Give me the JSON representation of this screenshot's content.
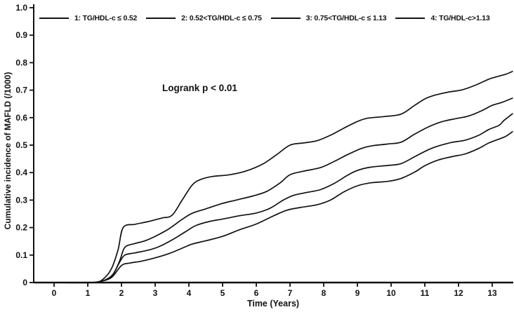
{
  "figure": {
    "annotation": "Logrank p < 0.01"
  },
  "colors": {
    "ink": "#111111",
    "background": "#ffffff"
  },
  "chart_data": {
    "type": "line",
    "title": "",
    "xlabel": "Time (Years)",
    "ylabel": "Cumulative incidence of MAFLD (/1000)",
    "annotation": "Logrank p < 0.01",
    "xlim": [
      -0.6,
      13.65
    ],
    "ylim": [
      0,
      1.0
    ],
    "xticks": [
      "0",
      "1",
      "2",
      "3",
      "4",
      "5",
      "6",
      "7",
      "8",
      "9",
      "10",
      "11",
      "12",
      "13"
    ],
    "yticks": [
      "0",
      "0.1",
      "0.2",
      "0.3",
      "0.4",
      "0.5",
      "0.6",
      "0.7",
      "0.8",
      "0.9",
      "1.0"
    ],
    "grid": false,
    "legend_position": "top",
    "series": [
      {
        "name": "1: TG/HDL-c ≤ 0.52",
        "points": [
          [
            0.1,
            0
          ],
          [
            1.0,
            0
          ],
          [
            1.35,
            0.004
          ],
          [
            1.7,
            0.018
          ],
          [
            2.0,
            0.062
          ],
          [
            2.25,
            0.071
          ],
          [
            2.6,
            0.078
          ],
          [
            3.0,
            0.09
          ],
          [
            3.4,
            0.105
          ],
          [
            3.8,
            0.125
          ],
          [
            4.1,
            0.14
          ],
          [
            4.5,
            0.152
          ],
          [
            5.0,
            0.168
          ],
          [
            5.5,
            0.192
          ],
          [
            6.0,
            0.213
          ],
          [
            6.5,
            0.242
          ],
          [
            6.9,
            0.263
          ],
          [
            7.3,
            0.273
          ],
          [
            7.8,
            0.283
          ],
          [
            8.2,
            0.3
          ],
          [
            8.6,
            0.33
          ],
          [
            9.0,
            0.352
          ],
          [
            9.4,
            0.363
          ],
          [
            9.9,
            0.368
          ],
          [
            10.3,
            0.379
          ],
          [
            10.7,
            0.402
          ],
          [
            11.0,
            0.425
          ],
          [
            11.4,
            0.446
          ],
          [
            11.8,
            0.458
          ],
          [
            12.2,
            0.468
          ],
          [
            12.6,
            0.488
          ],
          [
            12.9,
            0.508
          ],
          [
            13.2,
            0.522
          ],
          [
            13.4,
            0.532
          ],
          [
            13.6,
            0.549
          ]
        ]
      },
      {
        "name": "2: 0.52<TG/HDL-c ≤ 0.75",
        "points": [
          [
            0.1,
            0
          ],
          [
            1.05,
            0
          ],
          [
            1.4,
            0.005
          ],
          [
            1.7,
            0.022
          ],
          [
            1.95,
            0.075
          ],
          [
            2.1,
            0.1
          ],
          [
            2.4,
            0.108
          ],
          [
            2.8,
            0.118
          ],
          [
            3.1,
            0.13
          ],
          [
            3.5,
            0.155
          ],
          [
            3.9,
            0.185
          ],
          [
            4.2,
            0.207
          ],
          [
            4.6,
            0.222
          ],
          [
            5.0,
            0.231
          ],
          [
            5.5,
            0.243
          ],
          [
            6.0,
            0.253
          ],
          [
            6.4,
            0.27
          ],
          [
            6.8,
            0.3
          ],
          [
            7.1,
            0.317
          ],
          [
            7.5,
            0.328
          ],
          [
            7.9,
            0.338
          ],
          [
            8.3,
            0.36
          ],
          [
            8.7,
            0.39
          ],
          [
            9.0,
            0.408
          ],
          [
            9.4,
            0.42
          ],
          [
            9.9,
            0.426
          ],
          [
            10.3,
            0.433
          ],
          [
            10.7,
            0.458
          ],
          [
            11.1,
            0.483
          ],
          [
            11.4,
            0.497
          ],
          [
            11.8,
            0.51
          ],
          [
            12.2,
            0.518
          ],
          [
            12.6,
            0.536
          ],
          [
            12.9,
            0.557
          ],
          [
            13.2,
            0.572
          ],
          [
            13.35,
            0.59
          ],
          [
            13.6,
            0.614
          ]
        ]
      },
      {
        "name": "3: 0.75<TG/HDL-c ≤ 1.13",
        "points": [
          [
            0.1,
            0
          ],
          [
            1.1,
            0
          ],
          [
            1.45,
            0.006
          ],
          [
            1.75,
            0.03
          ],
          [
            1.95,
            0.08
          ],
          [
            2.1,
            0.128
          ],
          [
            2.4,
            0.142
          ],
          [
            2.7,
            0.152
          ],
          [
            3.0,
            0.168
          ],
          [
            3.4,
            0.195
          ],
          [
            3.8,
            0.23
          ],
          [
            4.1,
            0.252
          ],
          [
            4.5,
            0.268
          ],
          [
            5.0,
            0.288
          ],
          [
            5.4,
            0.3
          ],
          [
            5.9,
            0.315
          ],
          [
            6.3,
            0.331
          ],
          [
            6.7,
            0.362
          ],
          [
            7.0,
            0.392
          ],
          [
            7.4,
            0.405
          ],
          [
            7.9,
            0.418
          ],
          [
            8.3,
            0.44
          ],
          [
            8.7,
            0.465
          ],
          [
            9.1,
            0.487
          ],
          [
            9.4,
            0.497
          ],
          [
            9.9,
            0.504
          ],
          [
            10.3,
            0.511
          ],
          [
            10.7,
            0.54
          ],
          [
            11.1,
            0.566
          ],
          [
            11.5,
            0.585
          ],
          [
            11.9,
            0.596
          ],
          [
            12.3,
            0.606
          ],
          [
            12.7,
            0.626
          ],
          [
            13.0,
            0.645
          ],
          [
            13.3,
            0.656
          ],
          [
            13.6,
            0.671
          ]
        ]
      },
      {
        "name": "4: TG/HDL-c>1.13",
        "points": [
          [
            0.1,
            0
          ],
          [
            1.15,
            0
          ],
          [
            1.45,
            0.012
          ],
          [
            1.7,
            0.05
          ],
          [
            1.9,
            0.12
          ],
          [
            2.05,
            0.2
          ],
          [
            2.4,
            0.212
          ],
          [
            2.8,
            0.222
          ],
          [
            3.2,
            0.235
          ],
          [
            3.5,
            0.245
          ],
          [
            3.8,
            0.3
          ],
          [
            4.1,
            0.355
          ],
          [
            4.35,
            0.375
          ],
          [
            4.7,
            0.386
          ],
          [
            5.2,
            0.392
          ],
          [
            5.7,
            0.406
          ],
          [
            6.2,
            0.432
          ],
          [
            6.6,
            0.465
          ],
          [
            7.0,
            0.5
          ],
          [
            7.4,
            0.508
          ],
          [
            7.8,
            0.516
          ],
          [
            8.2,
            0.536
          ],
          [
            8.6,
            0.562
          ],
          [
            9.0,
            0.586
          ],
          [
            9.3,
            0.598
          ],
          [
            9.8,
            0.604
          ],
          [
            10.3,
            0.613
          ],
          [
            10.7,
            0.645
          ],
          [
            11.0,
            0.668
          ],
          [
            11.3,
            0.682
          ],
          [
            11.7,
            0.693
          ],
          [
            12.1,
            0.701
          ],
          [
            12.5,
            0.718
          ],
          [
            12.9,
            0.74
          ],
          [
            13.2,
            0.751
          ],
          [
            13.4,
            0.758
          ],
          [
            13.6,
            0.768
          ]
        ]
      }
    ]
  }
}
